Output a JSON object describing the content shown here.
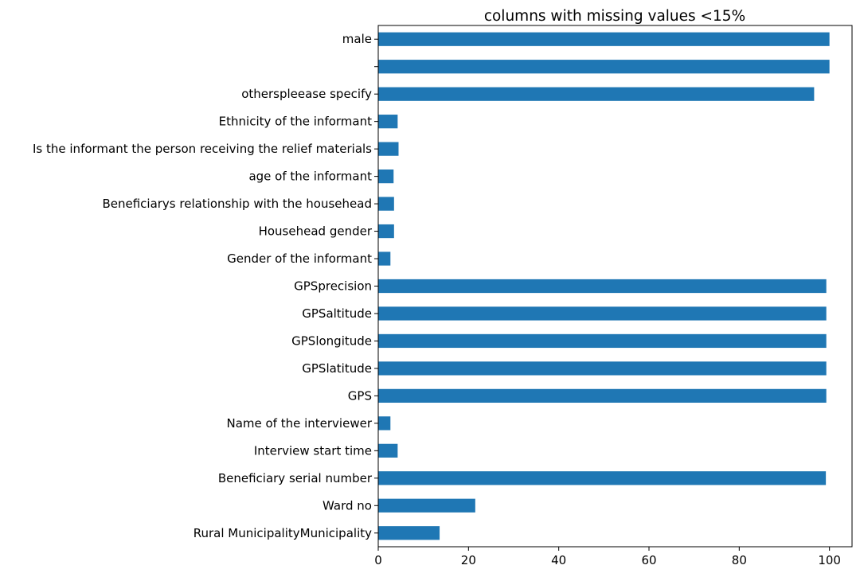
{
  "chart_data": {
    "type": "bar",
    "orientation": "horizontal",
    "title": "columns with missing values <15%",
    "xlabel": "",
    "ylabel": "",
    "xlim": [
      0,
      105
    ],
    "x_ticks": [
      0,
      20,
      40,
      60,
      80,
      100
    ],
    "grid": false,
    "legend": "none",
    "bar_color": "#1f77b4",
    "categories": [
      "Rural MunicipalityMunicipality",
      "Ward no",
      "Beneficiary serial number",
      "Interview start time",
      "Name of the interviewer",
      "GPS",
      "GPSlatitude",
      "GPSlongitude",
      "GPSaltitude",
      "GPSprecision",
      "Gender of the informant",
      "Househead gender",
      "Beneficiarys relationship with the househead",
      "age of the informant",
      "Is the informant the person receiving the relief materials",
      "Ethnicity of the informant",
      "otherspleease specify",
      "",
      "male"
    ],
    "values": [
      13.6,
      21.5,
      99.2,
      4.3,
      2.7,
      99.3,
      99.3,
      99.3,
      99.3,
      99.3,
      2.7,
      3.5,
      3.5,
      3.4,
      4.5,
      4.3,
      96.6,
      100.0,
      100.0
    ]
  }
}
